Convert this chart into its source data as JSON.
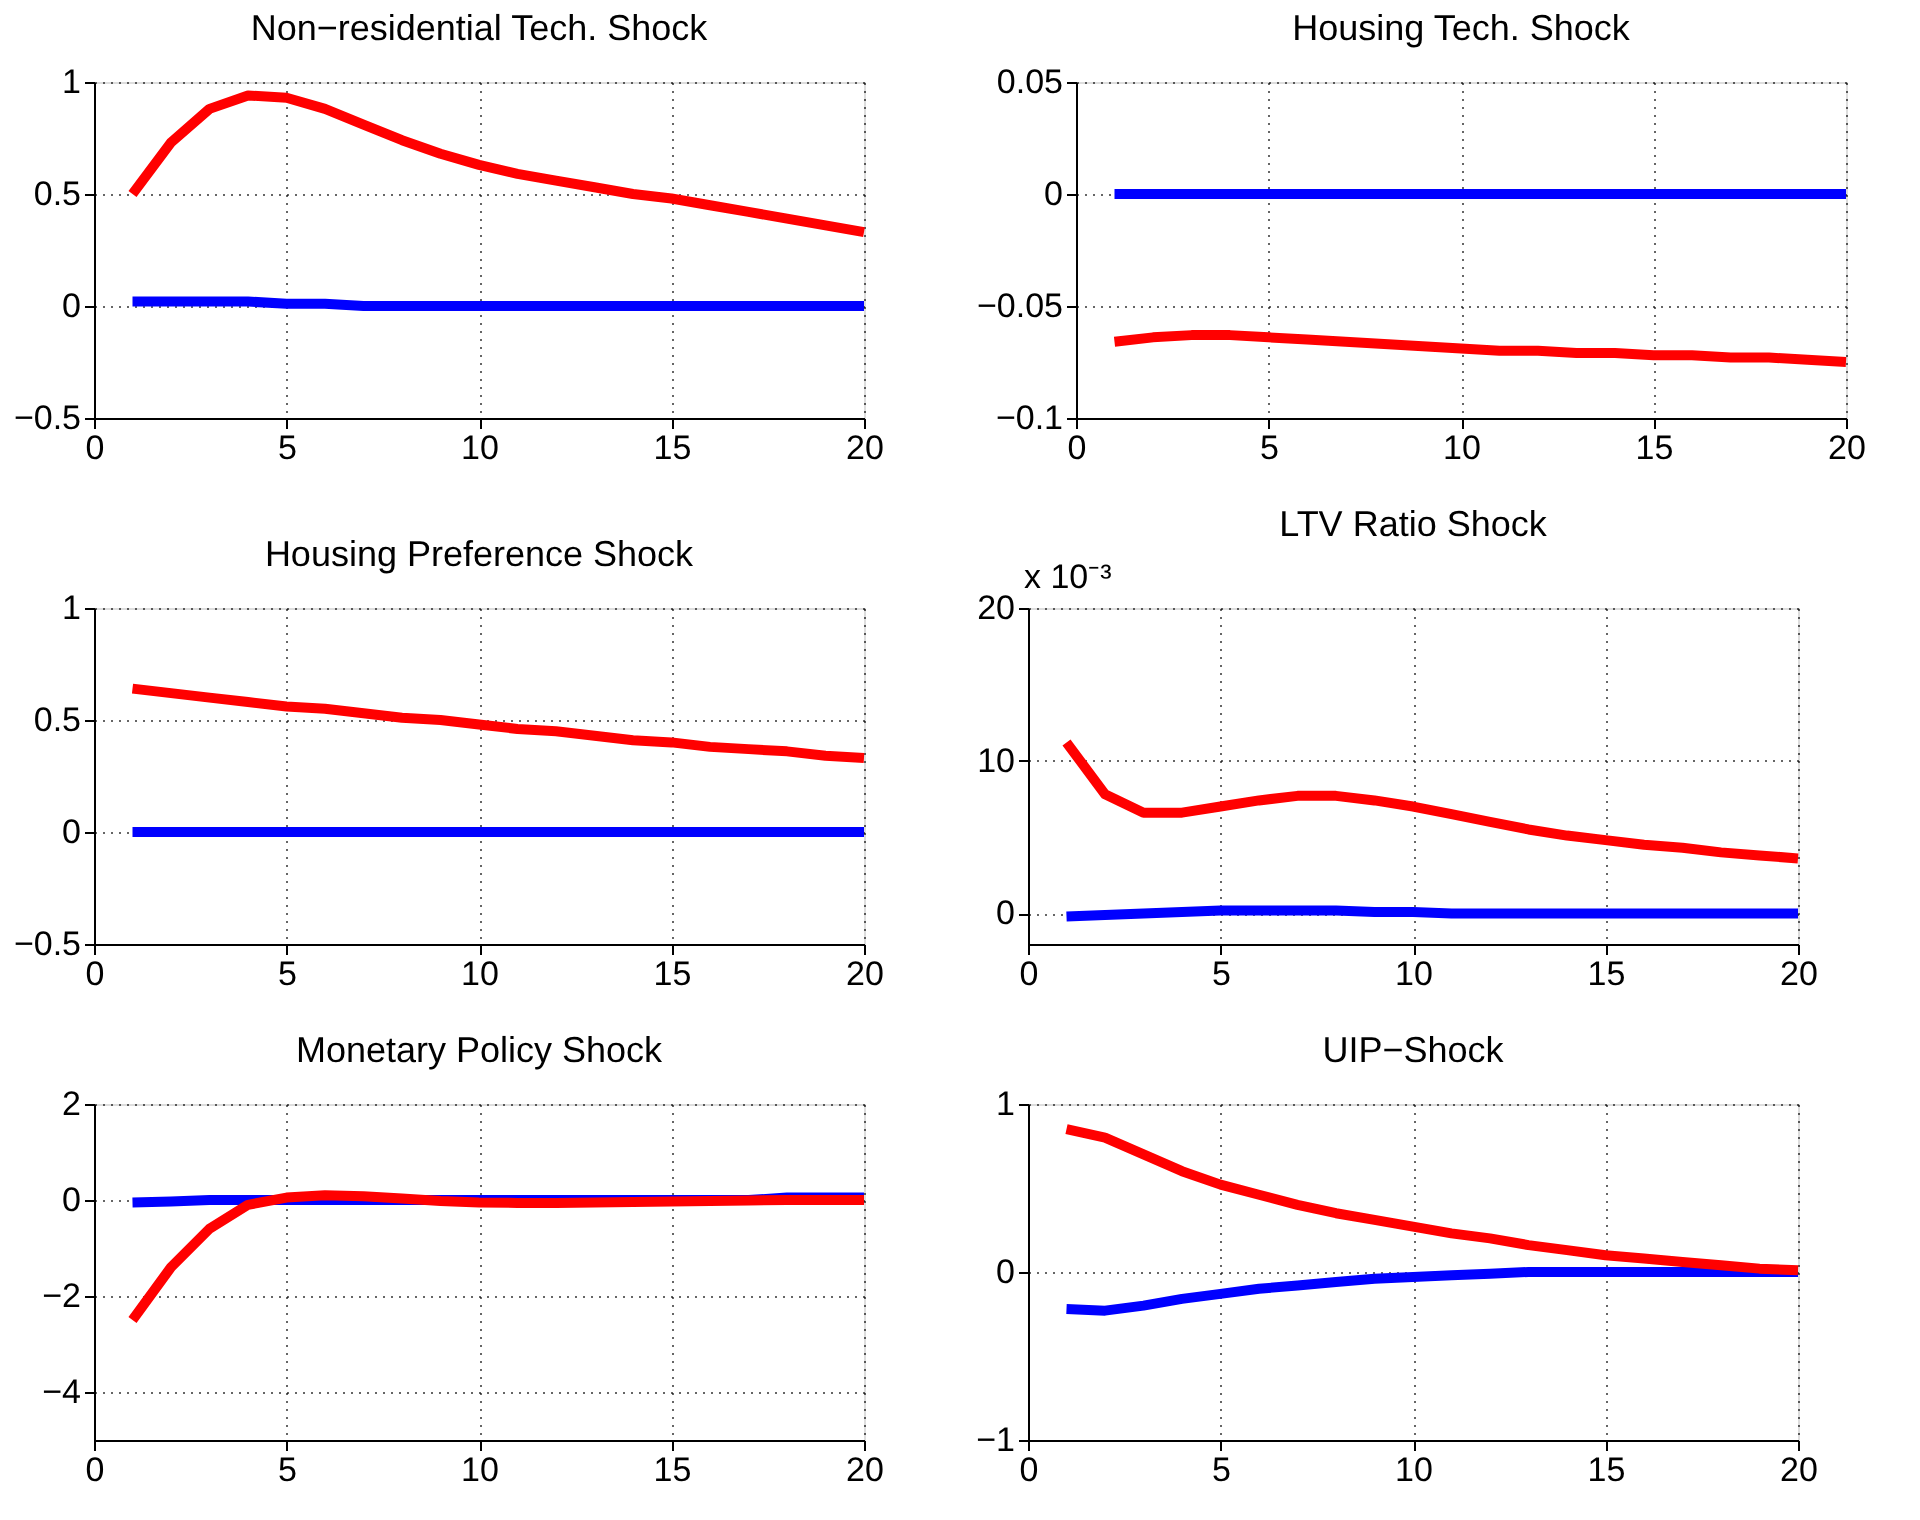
{
  "chart_data": [
    {
      "type": "line",
      "title": "Non−residential Tech. Shock",
      "x": [
        1,
        2,
        3,
        4,
        5,
        6,
        7,
        8,
        9,
        10,
        11,
        12,
        13,
        14,
        15,
        16,
        17,
        18,
        19,
        20
      ],
      "xlim": [
        0,
        20
      ],
      "xticks": [
        0,
        5,
        10,
        15,
        20
      ],
      "ylim": [
        -0.5,
        1
      ],
      "yticks": [
        -0.5,
        0,
        0.5,
        1
      ],
      "grid": true,
      "series": [
        {
          "color": "#ff0000",
          "values": [
            0.5,
            0.73,
            0.88,
            0.94,
            0.93,
            0.88,
            0.81,
            0.74,
            0.68,
            0.63,
            0.59,
            0.56,
            0.53,
            0.5,
            0.48,
            0.45,
            0.42,
            0.39,
            0.36,
            0.33
          ]
        },
        {
          "color": "#0000ff",
          "values": [
            0.02,
            0.02,
            0.02,
            0.02,
            0.01,
            0.01,
            0,
            0,
            0,
            0,
            0,
            0,
            0,
            0,
            0,
            0,
            0,
            0,
            0,
            0
          ]
        }
      ]
    },
    {
      "type": "line",
      "title": "Housing Tech. Shock",
      "x": [
        1,
        2,
        3,
        4,
        5,
        6,
        7,
        8,
        9,
        10,
        11,
        12,
        13,
        14,
        15,
        16,
        17,
        18,
        19,
        20
      ],
      "xlim": [
        0,
        20
      ],
      "xticks": [
        0,
        5,
        10,
        15,
        20
      ],
      "ylim": [
        -0.1,
        0.05
      ],
      "yticks": [
        -0.1,
        -0.05,
        0,
        0.05
      ],
      "grid": true,
      "series": [
        {
          "color": "#ff0000",
          "values": [
            -0.066,
            -0.064,
            -0.063,
            -0.063,
            -0.064,
            -0.065,
            -0.066,
            -0.067,
            -0.068,
            -0.069,
            -0.07,
            -0.07,
            -0.071,
            -0.071,
            -0.072,
            -0.072,
            -0.073,
            -0.073,
            -0.074,
            -0.075
          ]
        },
        {
          "color": "#0000ff",
          "values": [
            0,
            0,
            0,
            0,
            0,
            0,
            0,
            0,
            0,
            0,
            0,
            0,
            0,
            0,
            0,
            0,
            0,
            0,
            0,
            0
          ]
        }
      ]
    },
    {
      "type": "line",
      "title": "Housing Preference Shock",
      "x": [
        1,
        2,
        3,
        4,
        5,
        6,
        7,
        8,
        9,
        10,
        11,
        12,
        13,
        14,
        15,
        16,
        17,
        18,
        19,
        20
      ],
      "xlim": [
        0,
        20
      ],
      "xticks": [
        0,
        5,
        10,
        15,
        20
      ],
      "ylim": [
        -0.5,
        1
      ],
      "yticks": [
        -0.5,
        0,
        0.5,
        1
      ],
      "grid": true,
      "series": [
        {
          "color": "#ff0000",
          "values": [
            0.64,
            0.62,
            0.6,
            0.58,
            0.56,
            0.55,
            0.53,
            0.51,
            0.5,
            0.48,
            0.46,
            0.45,
            0.43,
            0.41,
            0.4,
            0.38,
            0.37,
            0.36,
            0.34,
            0.33
          ]
        },
        {
          "color": "#0000ff",
          "values": [
            0,
            0,
            0,
            0,
            0,
            0,
            0,
            0,
            0,
            0,
            0,
            0,
            0,
            0,
            0,
            0,
            0,
            0,
            0,
            0
          ]
        }
      ]
    },
    {
      "type": "line",
      "title": "LTV Ratio Shock",
      "annotations": [
        "x 10⁻³"
      ],
      "x": [
        1,
        2,
        3,
        4,
        5,
        6,
        7,
        8,
        9,
        10,
        11,
        12,
        13,
        14,
        15,
        16,
        17,
        18,
        19,
        20
      ],
      "xlim": [
        0,
        20
      ],
      "xticks": [
        0,
        5,
        10,
        15,
        20
      ],
      "ylim": [
        -2,
        20
      ],
      "yticks": [
        0,
        10,
        20
      ],
      "grid": true,
      "series": [
        {
          "color": "#ff0000",
          "values": [
            11.2,
            7.8,
            6.6,
            6.6,
            7.0,
            7.4,
            7.7,
            7.7,
            7.4,
            7.0,
            6.5,
            6.0,
            5.5,
            5.1,
            4.8,
            4.5,
            4.3,
            4.0,
            3.8,
            3.6
          ]
        },
        {
          "color": "#0000ff",
          "values": [
            -0.2,
            -0.1,
            0,
            0.1,
            0.2,
            0.2,
            0.2,
            0.2,
            0.1,
            0.1,
            0,
            0,
            0,
            0,
            0,
            0,
            0,
            0,
            0,
            0
          ]
        }
      ]
    },
    {
      "type": "line",
      "title": "Monetary Policy Shock",
      "x": [
        1,
        2,
        3,
        4,
        5,
        6,
        7,
        8,
        9,
        10,
        11,
        12,
        13,
        14,
        15,
        16,
        17,
        18,
        19,
        20
      ],
      "xlim": [
        0,
        20
      ],
      "xticks": [
        0,
        5,
        10,
        15,
        20
      ],
      "ylim": [
        -5,
        2
      ],
      "yticks": [
        -4,
        -2,
        0,
        2
      ],
      "grid": true,
      "series": [
        {
          "color": "#0000ff",
          "values": [
            -0.05,
            -0.03,
            0,
            0,
            0,
            0,
            0,
            0,
            0,
            0,
            0,
            0,
            0,
            0,
            0,
            0,
            0,
            0.05,
            0.05,
            0.05
          ]
        },
        {
          "color": "#ff0000",
          "values": [
            -2.5,
            -1.4,
            -0.6,
            -0.1,
            0.05,
            0.1,
            0.08,
            0.03,
            -0.02,
            -0.05,
            -0.06,
            -0.06,
            -0.05,
            -0.04,
            -0.03,
            -0.02,
            -0.01,
            0,
            0,
            0
          ]
        }
      ]
    },
    {
      "type": "line",
      "title": "UIP−Shock",
      "x": [
        1,
        2,
        3,
        4,
        5,
        6,
        7,
        8,
        9,
        10,
        11,
        12,
        13,
        14,
        15,
        16,
        17,
        18,
        19,
        20
      ],
      "xlim": [
        0,
        20
      ],
      "xticks": [
        0,
        5,
        10,
        15,
        20
      ],
      "ylim": [
        -1,
        1
      ],
      "yticks": [
        -1,
        0,
        1
      ],
      "grid": true,
      "series": [
        {
          "color": "#0000ff",
          "values": [
            -0.22,
            -0.23,
            -0.2,
            -0.16,
            -0.13,
            -0.1,
            -0.08,
            -0.06,
            -0.04,
            -0.03,
            -0.02,
            -0.01,
            0,
            0,
            0,
            0,
            0,
            0,
            0,
            0
          ]
        },
        {
          "color": "#ff0000",
          "values": [
            0.85,
            0.8,
            0.7,
            0.6,
            0.52,
            0.46,
            0.4,
            0.35,
            0.31,
            0.27,
            0.23,
            0.2,
            0.16,
            0.13,
            0.1,
            0.08,
            0.06,
            0.04,
            0.02,
            0.01
          ]
        }
      ]
    }
  ]
}
